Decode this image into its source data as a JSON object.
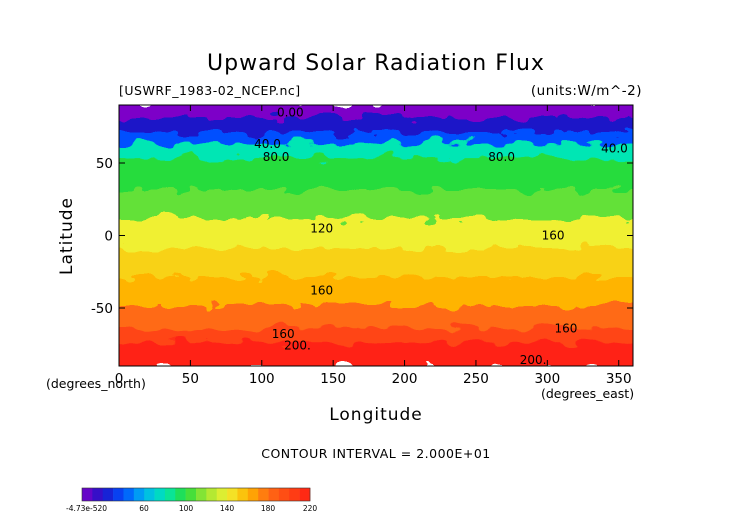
{
  "chart_data": {
    "type": "heatmap",
    "title": "Upward Solar Radiation Flux",
    "subtitle_left": "[USWRF_1983-02_NCEP.nc]",
    "subtitle_right": "(units:W/m^-2)",
    "xlabel": "Longitude",
    "ylabel": "Latitude",
    "x_unit_label": "(degrees_east)",
    "y_unit_label": "(degrees_north)",
    "xlim": [
      0,
      360
    ],
    "ylim": [
      -90,
      90
    ],
    "x_ticks": [
      0,
      50,
      100,
      150,
      200,
      250,
      300,
      350
    ],
    "y_ticks": [
      -50,
      0,
      50
    ],
    "x_tick_labels": [
      "0",
      "50",
      "100",
      "150",
      "200",
      "250",
      "300",
      "350"
    ],
    "y_tick_labels": [
      "-50",
      "0",
      "50"
    ],
    "contour_interval_text": "CONTOUR INTERVAL = 2.000E+01",
    "value_range": [
      0,
      220
    ],
    "latitude_bands": [
      {
        "lat_min": 80,
        "lat_max": 90,
        "value": 0
      },
      {
        "lat_min": 70,
        "lat_max": 80,
        "value": 20
      },
      {
        "lat_min": 62,
        "lat_max": 70,
        "value": 40
      },
      {
        "lat_min": 52,
        "lat_max": 62,
        "value": 80
      },
      {
        "lat_min": 30,
        "lat_max": 52,
        "value": 100
      },
      {
        "lat_min": 10,
        "lat_max": 30,
        "value": 110
      },
      {
        "lat_min": -10,
        "lat_max": 10,
        "value": 140
      },
      {
        "lat_min": -30,
        "lat_max": -10,
        "value": 150
      },
      {
        "lat_min": -50,
        "lat_max": -30,
        "value": 160
      },
      {
        "lat_min": -65,
        "lat_max": -50,
        "value": 180
      },
      {
        "lat_min": -75,
        "lat_max": -65,
        "value": 200
      },
      {
        "lat_min": -90,
        "lat_max": -75,
        "value": 220
      }
    ],
    "contour_labels": [
      {
        "text": "0.00",
        "lon": 120,
        "lat": 85
      },
      {
        "text": "40.0",
        "lon": 104,
        "lat": 63
      },
      {
        "text": "80.0",
        "lon": 110,
        "lat": 54
      },
      {
        "text": "80.0",
        "lon": 268,
        "lat": 54
      },
      {
        "text": "40.0",
        "lon": 347,
        "lat": 60
      },
      {
        "text": "120",
        "lon": 142,
        "lat": 5
      },
      {
        "text": "160",
        "lon": 304,
        "lat": 0
      },
      {
        "text": "160",
        "lon": 142,
        "lat": -38
      },
      {
        "text": "160",
        "lon": 115,
        "lat": -68
      },
      {
        "text": "160",
        "lon": 313,
        "lat": -64
      },
      {
        "text": "200.",
        "lon": 125,
        "lat": -76
      },
      {
        "text": "200.",
        "lon": 290,
        "lat": -86
      }
    ],
    "colorbar": {
      "tick_labels": [
        "-4.73e-520",
        "60",
        "100",
        "140",
        "180",
        "220"
      ],
      "min": 0,
      "max": 220
    }
  }
}
